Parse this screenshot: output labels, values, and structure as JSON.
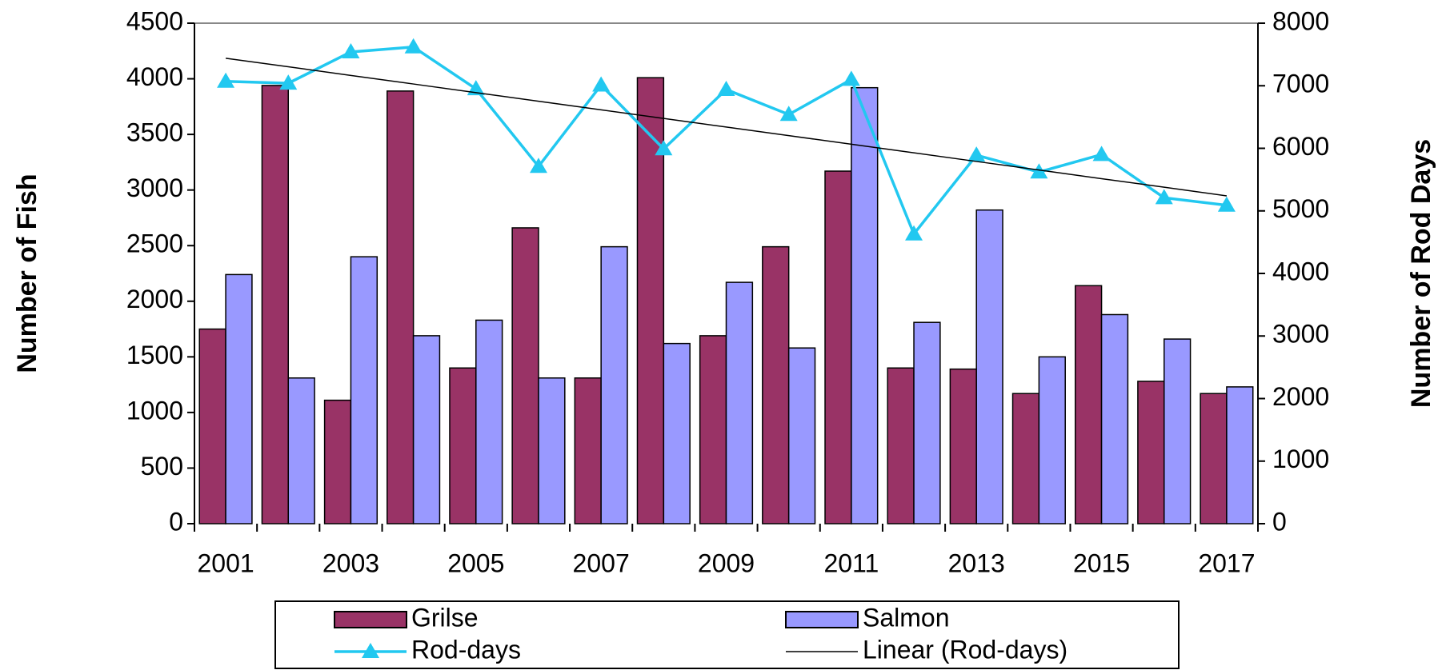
{
  "chart_data": {
    "type": "bar",
    "categories": [
      "2001",
      null,
      "2003",
      null,
      "2005",
      null,
      "2007",
      null,
      "2009",
      null,
      "2011",
      null,
      "2013",
      null,
      "2015",
      null,
      "2017"
    ],
    "ylabel": "Number of Fish",
    "y2label": "Number of Rod Days",
    "ylim": [
      0,
      4500
    ],
    "yticks": [
      0,
      500,
      1000,
      1500,
      2000,
      2500,
      3000,
      3500,
      4000,
      4500
    ],
    "y2lim": [
      0,
      8000
    ],
    "y2ticks": [
      0,
      1000,
      2000,
      3000,
      4000,
      5000,
      6000,
      7000,
      8000
    ],
    "series": [
      {
        "name": "Grilse",
        "type": "bar",
        "color": "#993366",
        "values": [
          1750,
          3940,
          1110,
          3890,
          1400,
          2660,
          1310,
          4010,
          1690,
          2490,
          3170,
          1400,
          1390,
          1170,
          2140,
          1280,
          1170
        ]
      },
      {
        "name": "Salmon",
        "type": "bar",
        "color": "#9999ff",
        "values": [
          2240,
          1310,
          2400,
          1690,
          1830,
          1310,
          2490,
          1620,
          2170,
          1580,
          3920,
          1810,
          2820,
          1500,
          1880,
          1660,
          1230
        ]
      },
      {
        "name": "Rod-days",
        "type": "line",
        "marker": "triangle",
        "axis": "y2",
        "color": "#22c8f0",
        "values": [
          7070,
          7040,
          7540,
          7620,
          6950,
          5710,
          7010,
          5990,
          6940,
          6540,
          7100,
          4630,
          5890,
          5620,
          5900,
          5210,
          5090
        ]
      },
      {
        "name": "Linear (Rod-days)",
        "type": "line",
        "axis": "y2",
        "color": "#000000",
        "values": [
          7440,
          7303,
          7165,
          7028,
          6890,
          6753,
          6615,
          6478,
          6340,
          6203,
          6065,
          5928,
          5790,
          5653,
          5515,
          5378,
          5240
        ]
      }
    ],
    "legend": "bottom"
  }
}
